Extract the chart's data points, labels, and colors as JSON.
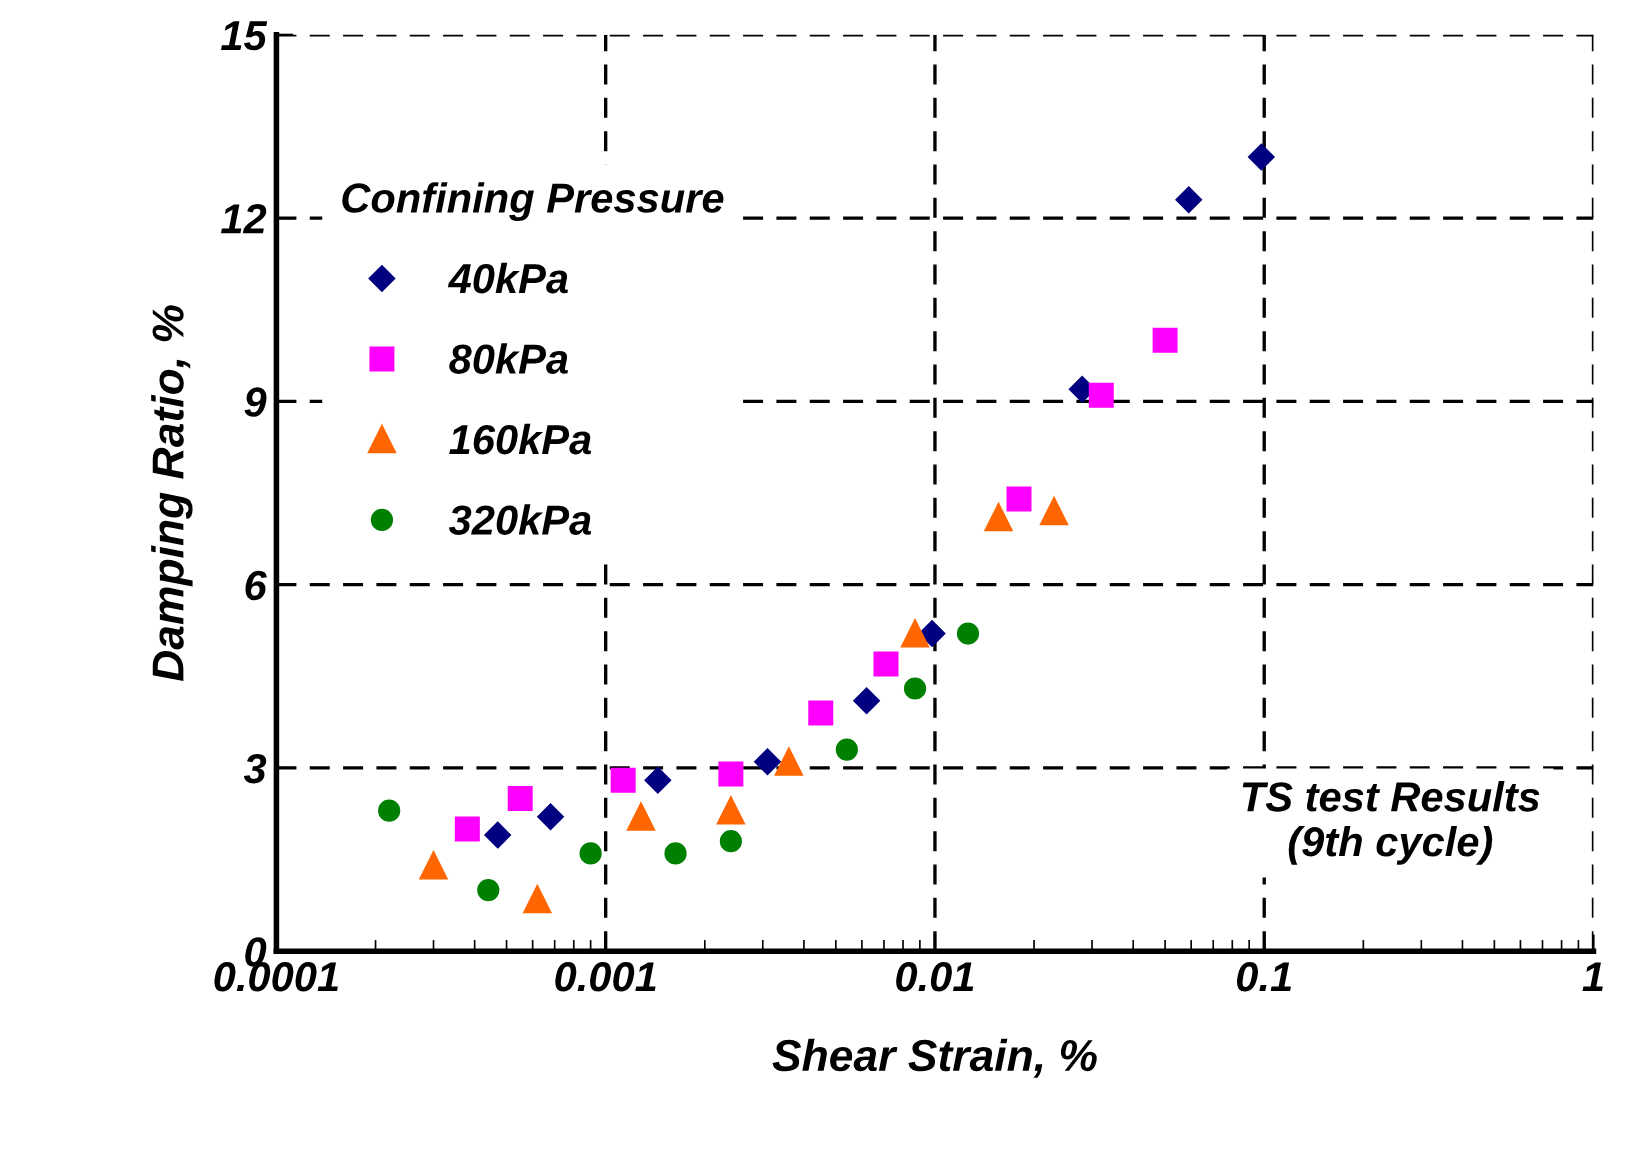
{
  "chart_data": {
    "type": "scatter",
    "xlabel": "Shear Strain, %",
    "ylabel": "Damping Ratio, %",
    "legend_title": "Confining Pressure",
    "legend": "top left",
    "log": "x",
    "grid": true,
    "xlim": [
      0.0001,
      1
    ],
    "xticks": [
      {
        "value": 0.0001,
        "label": "0.0001"
      },
      {
        "value": 0.001,
        "label": "0.001"
      },
      {
        "value": 0.01,
        "label": "0.01"
      },
      {
        "value": 0.1,
        "label": "0.1"
      },
      {
        "value": 1,
        "label": "1"
      }
    ],
    "ylim": [
      0,
      15
    ],
    "yticks": [
      0,
      3,
      6,
      9,
      12,
      15
    ],
    "annotations": [
      "TS test Results\n(9th cycle)"
    ],
    "series": [
      {
        "name": "40kPa",
        "color": "#000080",
        "marker": "diamond",
        "x": [
          0.00047,
          0.00068,
          0.00144,
          0.0031,
          0.0062,
          0.0098,
          0.028,
          0.059,
          0.098
        ],
        "values": [
          1.9,
          2.2,
          2.8,
          3.1,
          4.1,
          5.2,
          9.2,
          12.3,
          13.0
        ]
      },
      {
        "name": "80kPa",
        "color": "#ff00ff",
        "marker": "square",
        "x": [
          0.00038,
          0.00055,
          0.00113,
          0.0024,
          0.0045,
          0.0071,
          0.018,
          0.032,
          0.05
        ],
        "values": [
          2.0,
          2.5,
          2.8,
          2.9,
          3.9,
          4.7,
          7.4,
          9.1,
          10.0
        ]
      },
      {
        "name": "160kPa",
        "color": "#ff6600",
        "marker": "triangle",
        "x": [
          0.0003,
          0.00062,
          0.00128,
          0.0024,
          0.0036,
          0.0087,
          0.0156,
          0.023
        ],
        "values": [
          1.4,
          0.85,
          2.2,
          2.3,
          3.1,
          5.2,
          7.1,
          7.2
        ]
      },
      {
        "name": "320kPa",
        "color": "#008000",
        "marker": "circle",
        "x": [
          0.00022,
          0.00044,
          0.0009,
          0.00163,
          0.0024,
          0.0054,
          0.0087,
          0.0126
        ],
        "values": [
          2.3,
          1.0,
          1.6,
          1.6,
          1.8,
          3.3,
          4.3,
          5.2
        ]
      }
    ]
  }
}
